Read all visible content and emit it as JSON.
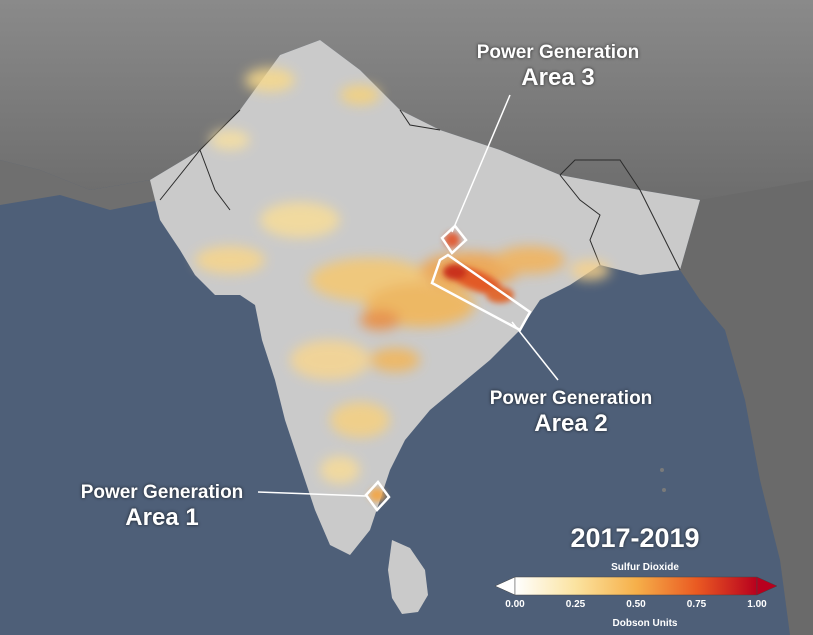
{
  "map": {
    "period": "2017-2019",
    "areas": [
      {
        "id": "area-1",
        "line1": "Power Generation",
        "line2": "Area 1"
      },
      {
        "id": "area-2",
        "line1": "Power Generation",
        "line2": "Area 2"
      },
      {
        "id": "area-3",
        "line1": "Power Generation",
        "line2": "Area 3"
      }
    ],
    "colorbar": {
      "title": "Sulfur Dioxide",
      "units": "Dobson Units",
      "ticks": [
        "0.00",
        "0.25",
        "0.50",
        "0.75",
        "1.00"
      ],
      "min": 0,
      "max": 1,
      "colors": [
        "#ffffff",
        "#fbe3a0",
        "#f6b04a",
        "#ea5a22",
        "#b8001e"
      ]
    },
    "colors": {
      "ocean": "#4e5f78",
      "land": "#c9c9c9",
      "terrain": "#6b6b6b"
    }
  }
}
